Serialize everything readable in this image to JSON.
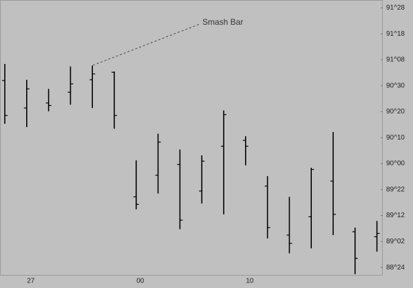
{
  "chart_data": {
    "type": "ohlc",
    "annotation": "Smash Bar",
    "color": "#000000",
    "categories": [
      null,
      "27",
      null,
      null,
      null,
      null,
      "00",
      null,
      null,
      null,
      null,
      "10",
      null,
      null,
      null,
      null,
      null,
      null
    ],
    "series": [
      {
        "open": [
          91.0,
          90.67,
          90.73,
          90.86,
          91.01,
          91.1,
          89.6,
          89.86,
          89.99,
          89.67,
          90.21,
          90.28,
          89.73,
          89.14,
          89.36,
          89.79,
          89.18,
          89.12
        ],
        "high": [
          91.2,
          91.01,
          90.9,
          91.17,
          91.18,
          91.11,
          90.04,
          90.36,
          90.17,
          90.1,
          90.64,
          90.33,
          89.85,
          89.6,
          89.95,
          90.38,
          89.23,
          89.31
        ],
        "low": [
          90.48,
          90.44,
          90.63,
          90.71,
          90.67,
          90.42,
          89.45,
          89.64,
          89.21,
          89.52,
          89.39,
          89.98,
          89.1,
          88.92,
          88.98,
          89.14,
          88.67,
          88.94
        ],
        "close": [
          90.58,
          90.9,
          90.7,
          90.96,
          91.08,
          90.58,
          89.51,
          90.26,
          89.32,
          90.03,
          90.59,
          90.21,
          89.23,
          89.04,
          89.93,
          89.39,
          88.86,
          89.16
        ]
      }
    ],
    "ylim": [
      88.66,
      91.97
    ],
    "yticks": [
      {
        "value": 91.875,
        "label": "91^28"
      },
      {
        "value": 91.5625,
        "label": "91^18"
      },
      {
        "value": 91.25,
        "label": "91^08"
      },
      {
        "value": 90.9375,
        "label": "90^30"
      },
      {
        "value": 90.625,
        "label": "90^20"
      },
      {
        "value": 90.3125,
        "label": "90^10"
      },
      {
        "value": 90.0,
        "label": "90^00"
      },
      {
        "value": 89.6875,
        "label": "89^22"
      },
      {
        "value": 89.375,
        "label": "89^12"
      },
      {
        "value": 89.0625,
        "label": "89^02"
      },
      {
        "value": 88.75,
        "label": "88^24"
      }
    ]
  }
}
